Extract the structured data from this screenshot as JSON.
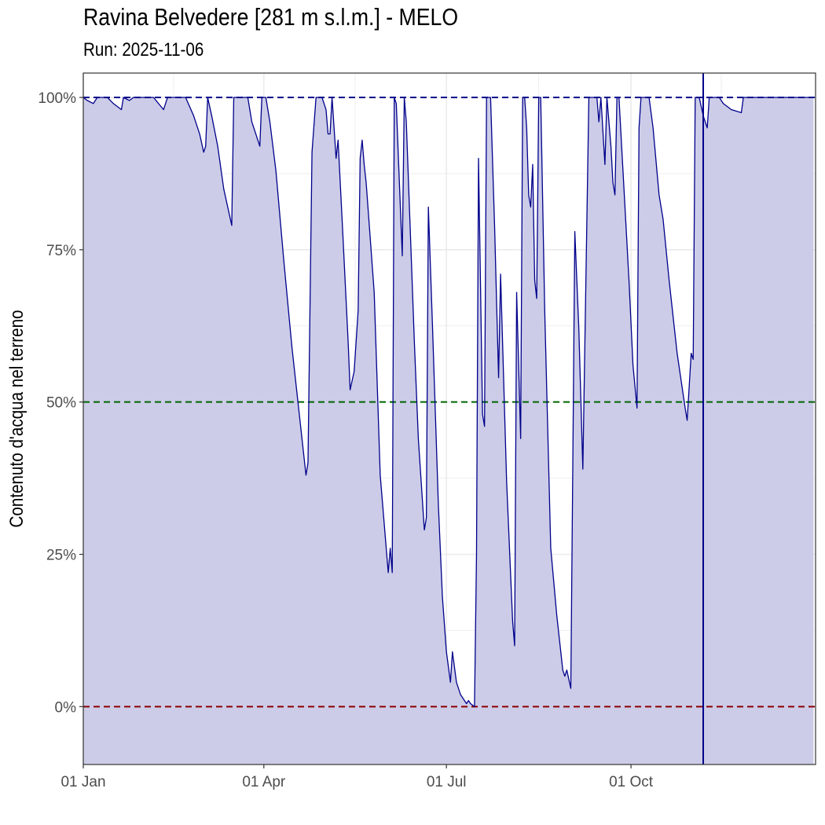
{
  "chart_data": {
    "type": "area",
    "title": "Ravina Belvedere [281 m s.l.m.] - MELO",
    "subtitle": "Run: 2025-11-06",
    "ylabel": "Contenuto d'acqua nel terreno",
    "xlabel": "",
    "xlim": [
      "2025-01-01",
      "2025-12-31"
    ],
    "ylim": [
      -9.5,
      104
    ],
    "x_ticks": [
      {
        "date": "2025-01-01",
        "label": "01 Jan"
      },
      {
        "date": "2025-04-01",
        "label": "01 Apr"
      },
      {
        "date": "2025-07-01",
        "label": "01 Jul"
      },
      {
        "date": "2025-10-01",
        "label": "01 Oct"
      }
    ],
    "y_ticks": [
      {
        "value": 0,
        "label": "0%"
      },
      {
        "value": 25,
        "label": "25%"
      },
      {
        "value": 50,
        "label": "50%"
      },
      {
        "value": 75,
        "label": "75%"
      },
      {
        "value": 100,
        "label": "100%"
      }
    ],
    "reference_lines": [
      {
        "value": 100,
        "color": "#00008b",
        "style": "dashed"
      },
      {
        "value": 50,
        "color": "#006400",
        "style": "dashed"
      },
      {
        "value": 0,
        "color": "#8b0000",
        "style": "dashed"
      }
    ],
    "run_date_line": {
      "date": "2025-11-06",
      "color": "#00008b"
    },
    "grid": true,
    "colors": {
      "line": "#00008b",
      "fill": "#cccce8",
      "panel_border": "#333333",
      "grid": "#ebebeb"
    },
    "series": [
      {
        "points": [
          [
            "2025-01-01",
            100
          ],
          [
            "2025-01-03",
            99.5
          ],
          [
            "2025-01-06",
            99
          ],
          [
            "2025-01-08",
            100
          ],
          [
            "2025-01-13",
            100
          ],
          [
            "2025-01-16",
            99
          ],
          [
            "2025-01-20",
            98
          ],
          [
            "2025-01-21",
            100
          ],
          [
            "2025-01-24",
            99.5
          ],
          [
            "2025-01-26",
            100
          ],
          [
            "2025-02-05",
            100
          ],
          [
            "2025-02-10",
            98
          ],
          [
            "2025-02-12",
            100
          ],
          [
            "2025-02-21",
            100
          ],
          [
            "2025-02-25",
            97
          ],
          [
            "2025-02-28",
            94
          ],
          [
            "2025-03-02",
            91
          ],
          [
            "2025-03-03",
            92
          ],
          [
            "2025-03-04",
            100
          ],
          [
            "2025-03-06",
            97
          ],
          [
            "2025-03-09",
            92
          ],
          [
            "2025-03-12",
            85
          ],
          [
            "2025-03-16",
            79
          ],
          [
            "2025-03-17",
            100
          ],
          [
            "2025-03-24",
            100
          ],
          [
            "2025-03-26",
            96
          ],
          [
            "2025-03-30",
            92
          ],
          [
            "2025-03-31",
            100
          ],
          [
            "2025-04-02",
            100
          ],
          [
            "2025-04-04",
            96
          ],
          [
            "2025-04-07",
            88
          ],
          [
            "2025-04-11",
            73
          ],
          [
            "2025-04-15",
            59
          ],
          [
            "2025-04-19",
            47
          ],
          [
            "2025-04-22",
            38
          ],
          [
            "2025-04-23",
            40
          ],
          [
            "2025-04-25",
            91
          ],
          [
            "2025-04-27",
            100
          ],
          [
            "2025-04-30",
            100
          ],
          [
            "2025-05-02",
            98
          ],
          [
            "2025-05-03",
            94
          ],
          [
            "2025-05-04",
            94
          ],
          [
            "2025-05-05",
            100
          ],
          [
            "2025-05-07",
            90
          ],
          [
            "2025-05-08",
            93
          ],
          [
            "2025-05-10",
            80
          ],
          [
            "2025-05-13",
            60
          ],
          [
            "2025-05-14",
            52
          ],
          [
            "2025-05-16",
            55
          ],
          [
            "2025-05-18",
            65
          ],
          [
            "2025-05-19",
            90
          ],
          [
            "2025-05-20",
            93
          ],
          [
            "2025-05-21",
            89
          ],
          [
            "2025-05-22",
            86
          ],
          [
            "2025-05-26",
            68
          ],
          [
            "2025-05-29",
            38
          ],
          [
            "2025-06-02",
            22
          ],
          [
            "2025-06-03",
            26
          ],
          [
            "2025-06-04",
            22
          ],
          [
            "2025-06-05",
            100
          ],
          [
            "2025-06-06",
            99
          ],
          [
            "2025-06-09",
            74
          ],
          [
            "2025-06-10",
            100
          ],
          [
            "2025-06-11",
            96
          ],
          [
            "2025-06-15",
            60
          ],
          [
            "2025-06-17",
            44
          ],
          [
            "2025-06-20",
            29
          ],
          [
            "2025-06-21",
            31
          ],
          [
            "2025-06-22",
            82
          ],
          [
            "2025-06-24",
            63
          ],
          [
            "2025-06-27",
            33
          ],
          [
            "2025-06-29",
            18
          ],
          [
            "2025-07-01",
            9
          ],
          [
            "2025-07-03",
            4
          ],
          [
            "2025-07-04",
            9
          ],
          [
            "2025-07-06",
            4
          ],
          [
            "2025-07-08",
            2
          ],
          [
            "2025-07-11",
            0.5
          ],
          [
            "2025-07-12",
            1
          ],
          [
            "2025-07-13",
            0.5
          ],
          [
            "2025-07-15",
            0
          ],
          [
            "2025-07-16",
            25
          ],
          [
            "2025-07-17",
            90
          ],
          [
            "2025-07-19",
            48
          ],
          [
            "2025-07-20",
            46
          ],
          [
            "2025-07-21",
            100
          ],
          [
            "2025-07-23",
            100
          ],
          [
            "2025-07-25",
            79
          ],
          [
            "2025-07-27",
            54
          ],
          [
            "2025-07-28",
            71
          ],
          [
            "2025-07-31",
            37
          ],
          [
            "2025-08-03",
            14
          ],
          [
            "2025-08-04",
            10
          ],
          [
            "2025-08-05",
            68
          ],
          [
            "2025-08-07",
            44
          ],
          [
            "2025-08-08",
            100
          ],
          [
            "2025-08-09",
            100
          ],
          [
            "2025-08-10",
            95
          ],
          [
            "2025-08-11",
            84
          ],
          [
            "2025-08-12",
            82
          ],
          [
            "2025-08-13",
            89
          ],
          [
            "2025-08-14",
            70
          ],
          [
            "2025-08-15",
            67
          ],
          [
            "2025-08-16",
            100
          ],
          [
            "2025-08-17",
            100
          ],
          [
            "2025-08-19",
            65
          ],
          [
            "2025-08-22",
            26
          ],
          [
            "2025-08-25",
            15
          ],
          [
            "2025-08-28",
            6
          ],
          [
            "2025-08-29",
            5
          ],
          [
            "2025-08-30",
            6
          ],
          [
            "2025-09-01",
            3
          ],
          [
            "2025-09-02",
            40
          ],
          [
            "2025-09-03",
            78
          ],
          [
            "2025-09-05",
            62
          ],
          [
            "2025-09-07",
            39
          ],
          [
            "2025-09-10",
            100
          ],
          [
            "2025-09-14",
            100
          ],
          [
            "2025-09-15",
            96
          ],
          [
            "2025-09-16",
            100
          ],
          [
            "2025-09-18",
            89
          ],
          [
            "2025-09-19",
            100
          ],
          [
            "2025-09-21",
            92
          ],
          [
            "2025-09-22",
            86
          ],
          [
            "2025-09-23",
            84
          ],
          [
            "2025-09-24",
            100
          ],
          [
            "2025-09-25",
            100
          ],
          [
            "2025-09-27",
            88
          ],
          [
            "2025-09-30",
            70
          ],
          [
            "2025-10-02",
            56
          ],
          [
            "2025-10-04",
            49
          ],
          [
            "2025-10-05",
            95
          ],
          [
            "2025-10-06",
            100
          ],
          [
            "2025-10-10",
            100
          ],
          [
            "2025-10-12",
            95
          ],
          [
            "2025-10-15",
            84
          ],
          [
            "2025-10-17",
            80
          ],
          [
            "2025-10-20",
            70
          ],
          [
            "2025-10-24",
            58
          ],
          [
            "2025-10-28",
            49
          ],
          [
            "2025-10-29",
            47
          ],
          [
            "2025-10-31",
            58
          ],
          [
            "2025-11-01",
            57
          ],
          [
            "2025-11-02",
            100
          ],
          [
            "2025-11-04",
            100
          ],
          [
            "2025-11-06",
            97
          ],
          [
            "2025-11-08",
            95
          ],
          [
            "2025-11-09",
            100
          ],
          [
            "2025-11-14",
            100
          ],
          [
            "2025-11-16",
            99
          ],
          [
            "2025-11-20",
            98
          ],
          [
            "2025-11-25",
            97.5
          ],
          [
            "2025-11-26",
            100
          ],
          [
            "2025-12-31",
            100
          ]
        ]
      }
    ]
  }
}
